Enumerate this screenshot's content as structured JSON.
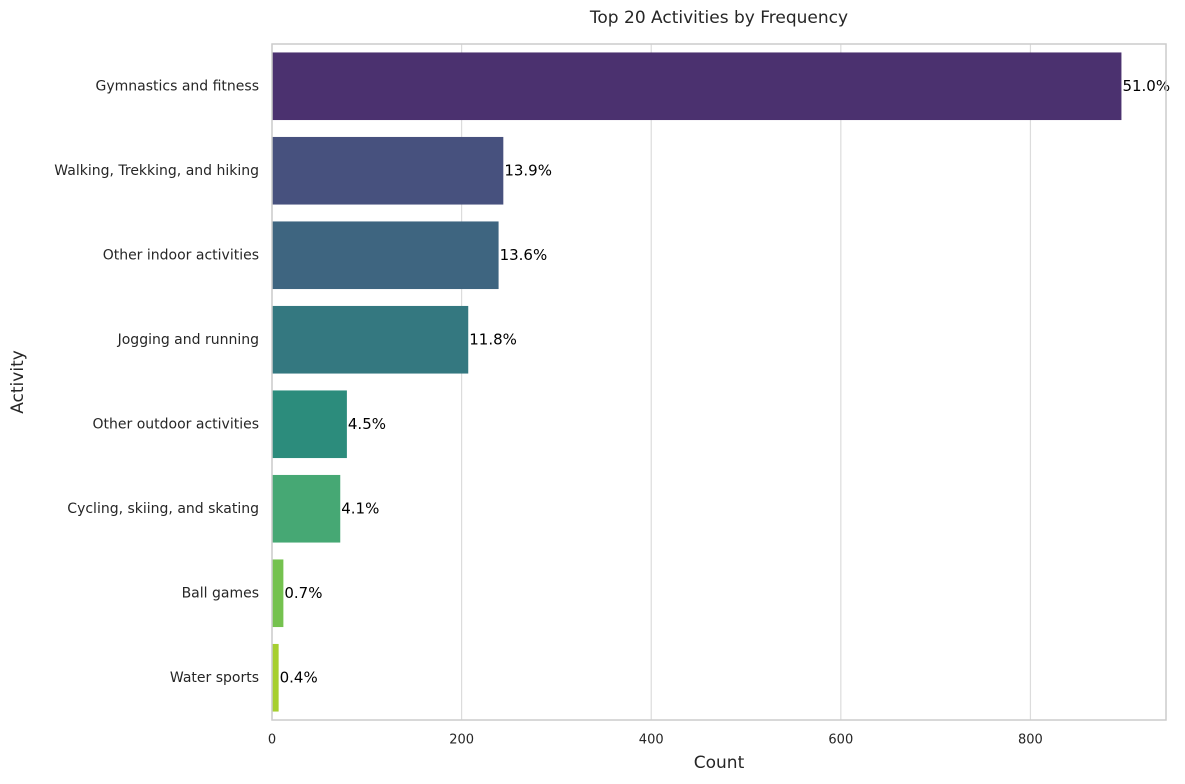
{
  "chart_data": {
    "type": "hbar",
    "title": "Top 20 Activities by Frequency",
    "x_label": "Count",
    "y_label": "Activity",
    "categories": [
      "Gymnastics and fitness",
      "Walking, Trekking, and hiking",
      "Other indoor activities",
      "Jogging and running",
      "Other outdoor activities",
      "Cycling, skiing, and skating",
      "Ball games",
      "Water sports"
    ],
    "values": [
      896,
      244,
      239,
      207,
      79,
      72,
      12,
      7
    ],
    "value_labels": [
      "51.0%",
      "13.9%",
      "13.6%",
      "11.8%",
      "4.5%",
      "4.1%",
      "0.7%",
      "0.4%"
    ],
    "colors": [
      "#4b316f",
      "#47517e",
      "#3e6580",
      "#347880",
      "#2c8c7c",
      "#46a874",
      "#75c24f",
      "#a6cf30"
    ],
    "xlim": [
      0,
      943
    ],
    "xticks": [
      0,
      200,
      400,
      600,
      800
    ],
    "grid": true
  }
}
